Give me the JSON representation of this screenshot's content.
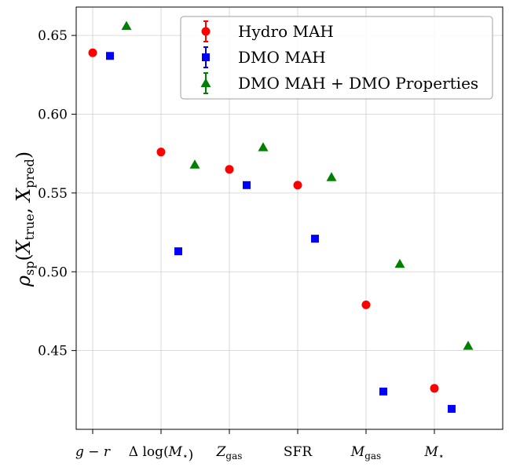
{
  "chart_data": {
    "type": "scatter",
    "ylabel": "ρsp(Xtrue, Xpred)",
    "ylim": [
      0.4,
      0.668
    ],
    "yticks": [
      "0.45",
      "0.50",
      "0.55",
      "0.60",
      "0.65"
    ],
    "categories": [
      "g − r",
      "Δ log(M⋆)",
      "Zgas",
      "SFR",
      "Mgas",
      "M⋆"
    ],
    "grid": true,
    "legend_placement": "top-right",
    "series": [
      {
        "name": "Hydro MAH",
        "marker": "circle",
        "color": "#ff0000",
        "values": [
          0.639,
          0.576,
          0.565,
          0.555,
          0.479,
          0.426
        ]
      },
      {
        "name": "DMO MAH",
        "marker": "square",
        "color": "#0000ff",
        "values": [
          0.637,
          0.513,
          0.555,
          0.521,
          0.424,
          0.413
        ]
      },
      {
        "name": "DMO MAH + DMO Properties",
        "marker": "triangle",
        "color": "#008000",
        "values": [
          0.656,
          0.568,
          0.579,
          0.56,
          0.505,
          0.453
        ]
      }
    ]
  }
}
